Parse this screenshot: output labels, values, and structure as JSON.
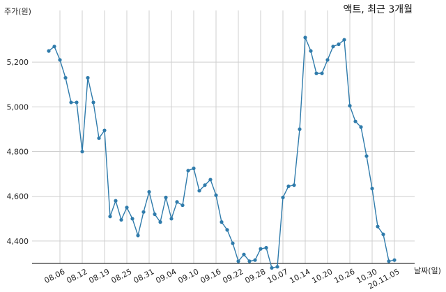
{
  "chart_data": {
    "type": "line",
    "title": "액트, 최근 3개월",
    "ylabel": "주가(원)",
    "xlabel": "날짜(일)",
    "ylim": [
      4300,
      5400
    ],
    "yticks": [
      "4,400",
      "4,600",
      "4,800",
      "5,000",
      "5,200"
    ],
    "ytick_values": [
      4400,
      4600,
      4800,
      5000,
      5200
    ],
    "xticks": [
      "08.06",
      "08.12",
      "08.19",
      "08.25",
      "08.31",
      "09.04",
      "09.10",
      "09.16",
      "09.22",
      "09.28",
      "10.07",
      "10.14",
      "10.20",
      "10.26",
      "10.30",
      "20.11.05"
    ],
    "xtick_indices": [
      2,
      6,
      10,
      14,
      18,
      22,
      26,
      30,
      34,
      38,
      42,
      46,
      50,
      54,
      58,
      62
    ],
    "grid": true,
    "color": "#2f7bab",
    "series": [
      {
        "values": [
          5250,
          5270,
          5210,
          5130,
          5020,
          5020,
          4800,
          5130,
          5020,
          4860,
          4895,
          4510,
          4580,
          4495,
          4550,
          4500,
          4425,
          4530,
          4620,
          4520,
          4485,
          4595,
          4500,
          4575,
          4560,
          4715,
          4725,
          4625,
          4650,
          4675,
          4605,
          4485,
          4450,
          4390,
          4310,
          4340,
          4310,
          4315,
          4365,
          4370,
          4280,
          4285,
          4595,
          4645,
          4650,
          4900,
          5310,
          5250,
          5150,
          5150,
          5210,
          5270,
          5280,
          5300,
          5005,
          4935,
          4910,
          4780,
          4635,
          4465,
          4430,
          4310,
          4315
        ]
      }
    ]
  }
}
